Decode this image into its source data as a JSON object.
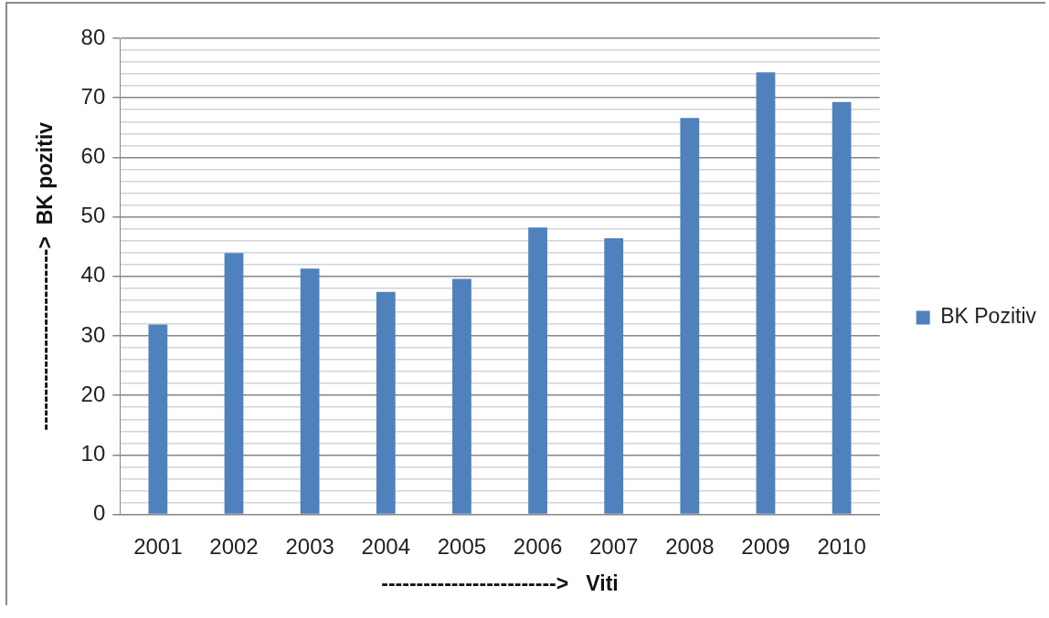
{
  "chart_data": {
    "type": "bar",
    "categories": [
      "2001",
      "2002",
      "2003",
      "2004",
      "2005",
      "2006",
      "2007",
      "2008",
      "2009",
      "2010"
    ],
    "series": [
      {
        "name": "BK Pozitiv",
        "color": "#4f81bd",
        "values": [
          31.9,
          43.9,
          41.3,
          37.4,
          39.6,
          48.2,
          46.4,
          66.6,
          74.3,
          69.3
        ]
      }
    ],
    "xlabel": "------------------------->   Viti",
    "ylabel": "-------------------------->  BK pozitiv",
    "ylim": [
      0,
      80
    ],
    "yticks": [
      0,
      {
        "value": 2,
        "label": null
      },
      {
        "value": 4,
        "label": null
      },
      {
        "value": 6,
        "label": null
      },
      {
        "value": 8,
        "label": null
      },
      10,
      {
        "value": 12,
        "label": null
      },
      {
        "value": 14,
        "label": null
      },
      {
        "value": 16,
        "label": null
      },
      {
        "value": 18,
        "label": null
      },
      20,
      {
        "value": 22,
        "label": null
      },
      {
        "value": 24,
        "label": null
      },
      {
        "value": 26,
        "label": null
      },
      {
        "value": 28,
        "label": null
      },
      30,
      {
        "value": 32,
        "label": null
      },
      {
        "value": 34,
        "label": null
      },
      {
        "value": 36,
        "label": null
      },
      {
        "value": 38,
        "label": null
      },
      40,
      {
        "value": 42,
        "label": null
      },
      {
        "value": 44,
        "label": null
      },
      {
        "value": 46,
        "label": null
      },
      {
        "value": 48,
        "label": null
      },
      50,
      {
        "value": 52,
        "label": null
      },
      {
        "value": 54,
        "label": null
      },
      {
        "value": 56,
        "label": null
      },
      {
        "value": 58,
        "label": null
      },
      60,
      {
        "value": 62,
        "label": null
      },
      {
        "value": 64,
        "label": null
      },
      {
        "value": 66,
        "label": null
      },
      {
        "value": 68,
        "label": null
      },
      70,
      {
        "value": 72,
        "label": null
      },
      {
        "value": 74,
        "label": null
      },
      {
        "value": 76,
        "label": null
      },
      {
        "value": 78,
        "label": null
      },
      80
    ],
    "grid": "y",
    "legend": "right"
  }
}
